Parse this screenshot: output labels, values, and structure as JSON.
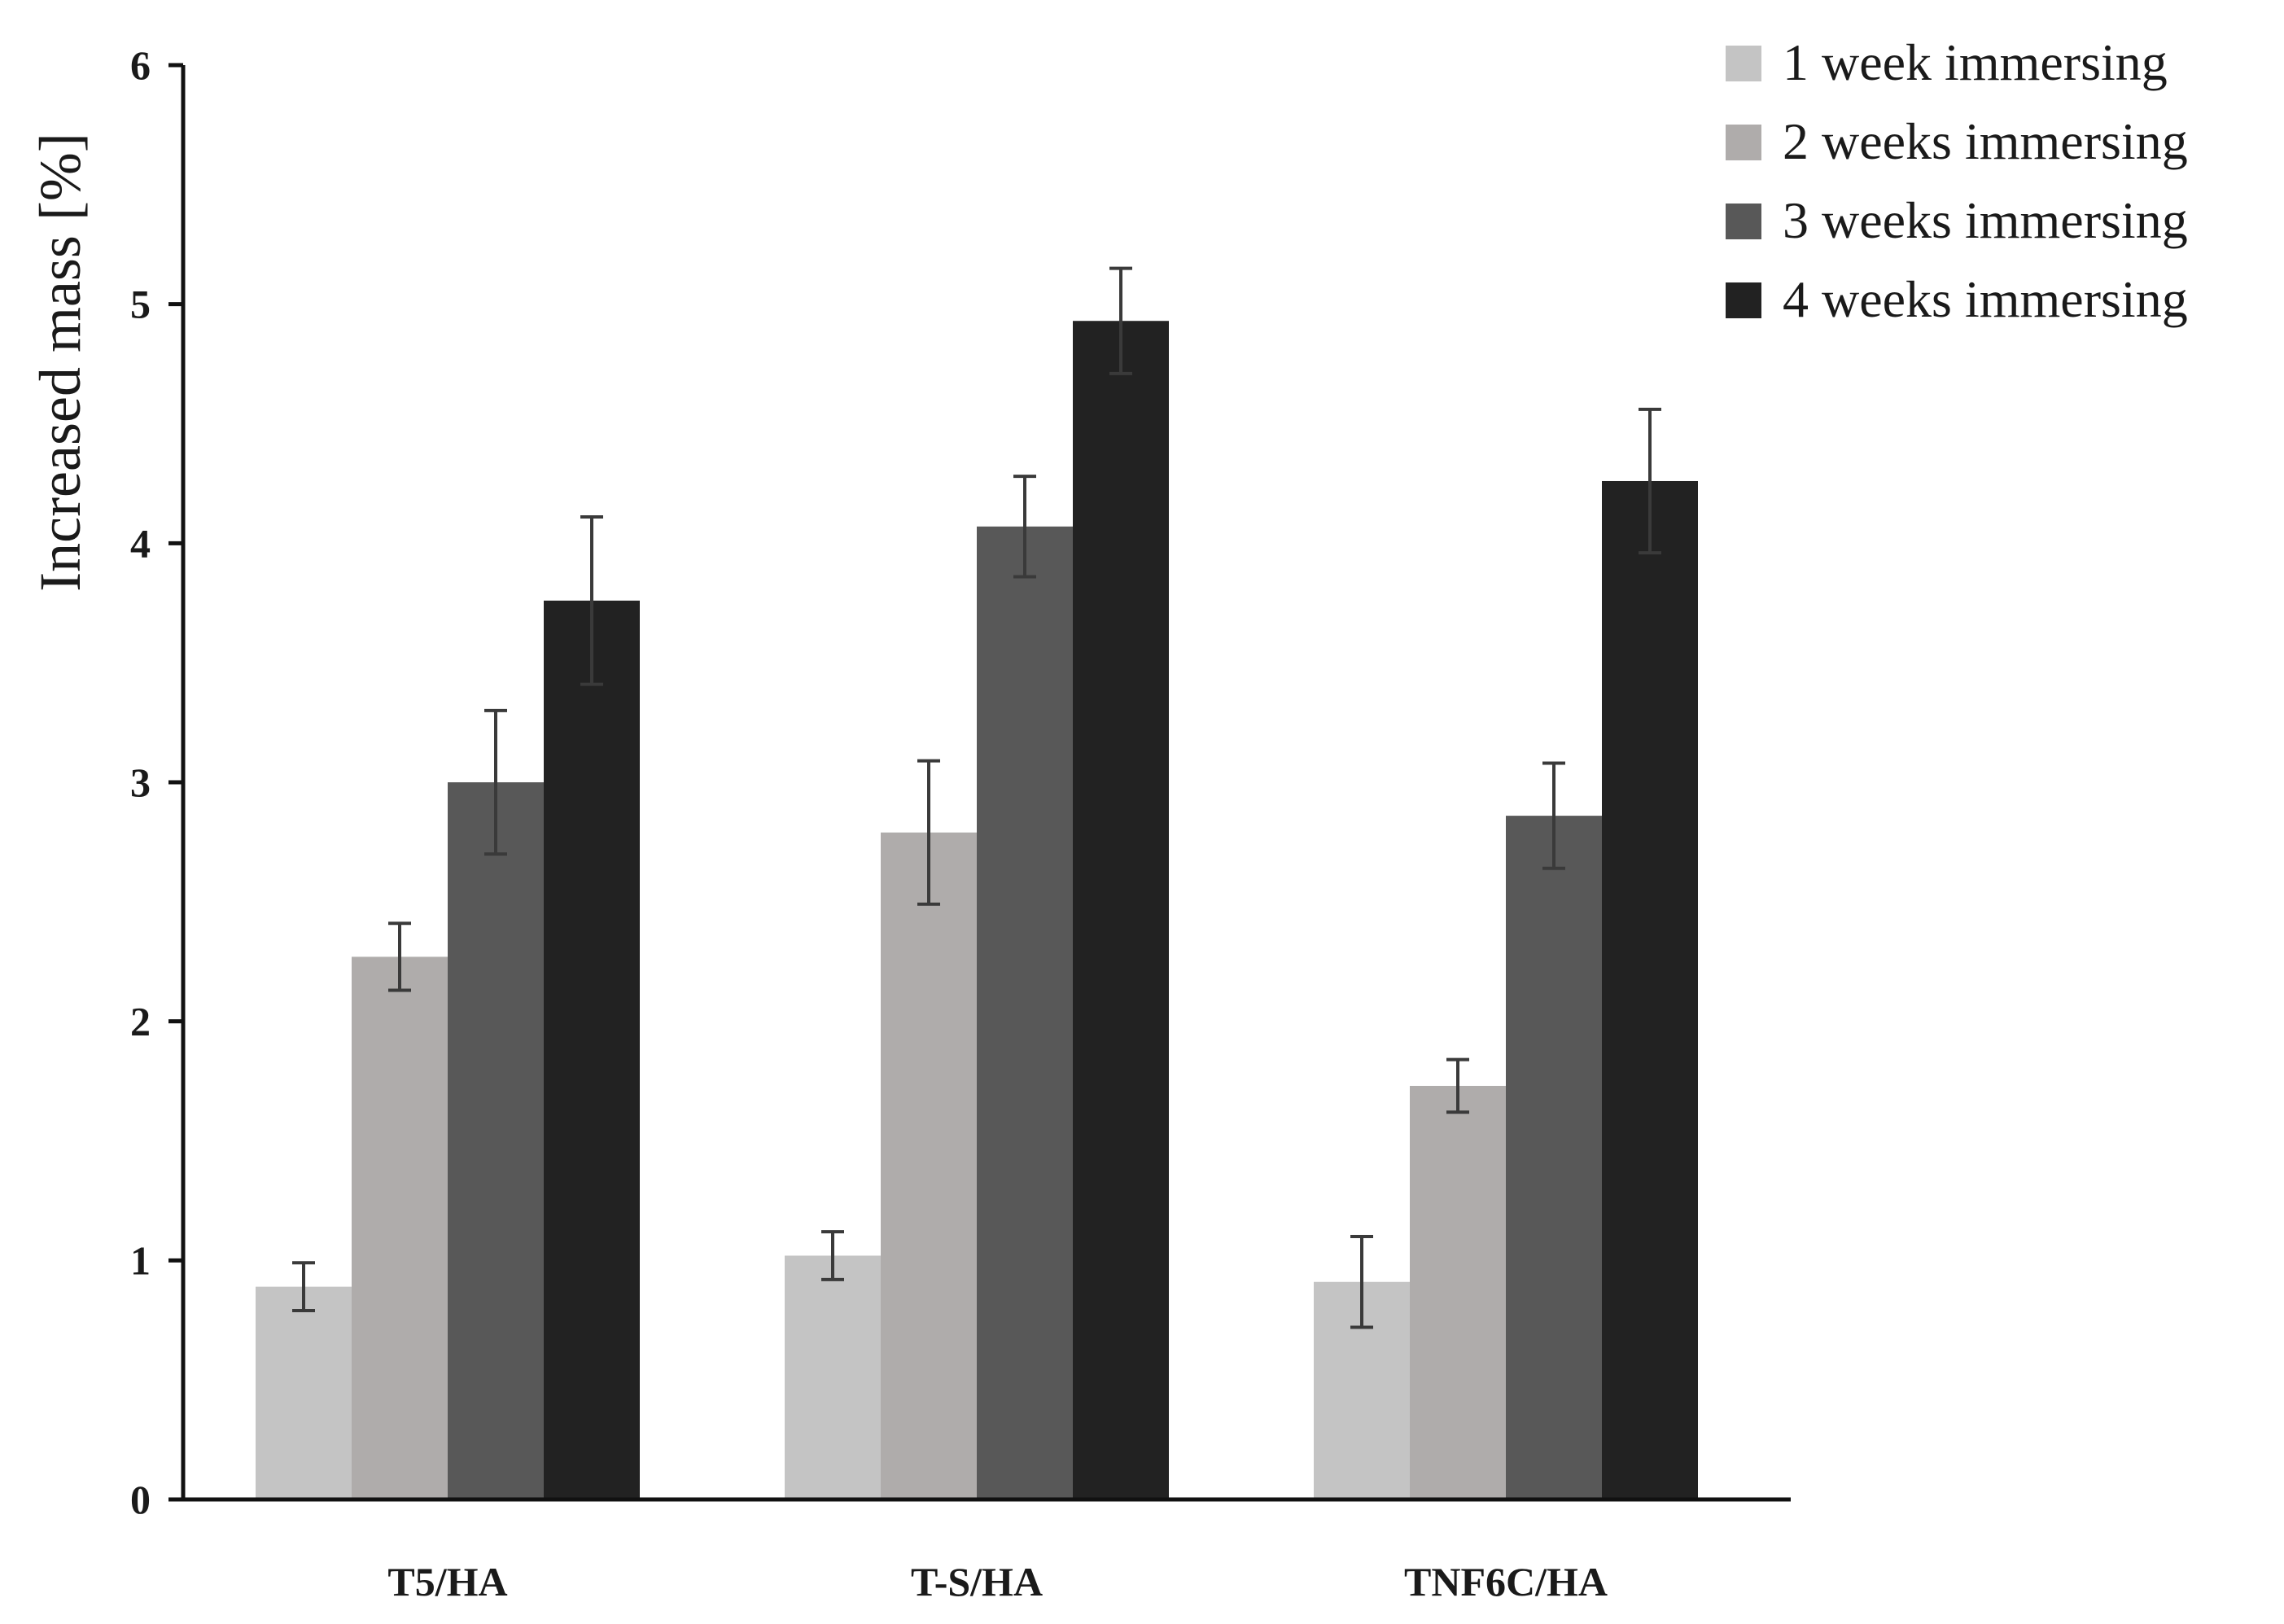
{
  "chart_data": {
    "type": "bar",
    "title": "",
    "xlabel": "",
    "ylabel": "Increased mass [%]",
    "ylim": [
      0,
      6
    ],
    "yticks": [
      0,
      1,
      2,
      3,
      4,
      5,
      6
    ],
    "grid": false,
    "legend_position": "top-right",
    "categories": [
      "T5/HA",
      "T-S/HA",
      "TNF6C/HA"
    ],
    "series": [
      {
        "name": "1 week immersing",
        "color": "#c4c4c4",
        "values": [
          0.89,
          1.02,
          0.91
        ],
        "errors": [
          0.1,
          0.1,
          0.19
        ]
      },
      {
        "name": "2 weeks immersing",
        "color": "#afacab",
        "values": [
          2.27,
          2.79,
          1.73
        ],
        "errors": [
          0.14,
          0.3,
          0.11
        ]
      },
      {
        "name": "3 weeks immersing",
        "color": "#585858",
        "values": [
          3.0,
          4.07,
          2.86
        ],
        "errors": [
          0.3,
          0.21,
          0.22
        ]
      },
      {
        "name": "4 weeks immersing",
        "color": "#222222",
        "values": [
          3.76,
          4.93,
          4.26
        ],
        "errors": [
          0.35,
          0.22,
          0.3
        ]
      }
    ]
  }
}
